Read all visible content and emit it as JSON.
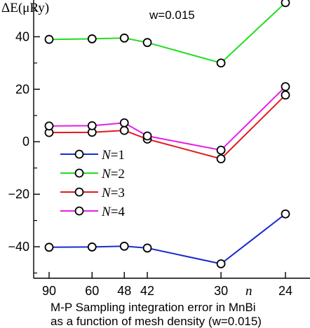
{
  "chart_data": {
    "type": "line",
    "ylabel": "ΔE(μRy)",
    "annotation": "w=0.015",
    "xlabel": "n",
    "caption": [
      "M-P Sampling integration error in MnBi",
      "as a function of mesh density (w=0.015)"
    ],
    "x": [
      90,
      60,
      48,
      42,
      30,
      24
    ],
    "x_tick_labels": [
      "90",
      "60",
      "48",
      "42",
      "30",
      "24"
    ],
    "x_scale": "reciprocal",
    "ylim": [
      -52,
      54
    ],
    "y_ticks": [
      -40,
      -20,
      0,
      20,
      40
    ],
    "y_tick_labels": [
      "−40",
      "−20",
      "0",
      "20",
      "40"
    ],
    "legend_position": "left-middle",
    "series": [
      {
        "name": "N=1",
        "name_main": "N",
        "name_suffix": "=1",
        "color": "#1a2bcc",
        "values": [
          -40.2,
          -40.1,
          -39.8,
          -40.5,
          -46.5,
          -27.5
        ]
      },
      {
        "name": "N=2",
        "name_main": "N",
        "name_suffix": "=2",
        "color": "#22dd22",
        "values": [
          39.0,
          39.2,
          39.5,
          37.8,
          30.0,
          53.0
        ]
      },
      {
        "name": "N=3",
        "name_main": "N",
        "name_suffix": "=3",
        "color": "#e21b1b",
        "values": [
          3.5,
          3.6,
          4.3,
          1.0,
          -6.5,
          17.8
        ]
      },
      {
        "name": "N=4",
        "name_main": "N",
        "name_suffix": "=4",
        "color": "#e61ee6",
        "values": [
          6.0,
          6.1,
          7.2,
          2.2,
          -3.2,
          21.0
        ]
      }
    ]
  }
}
